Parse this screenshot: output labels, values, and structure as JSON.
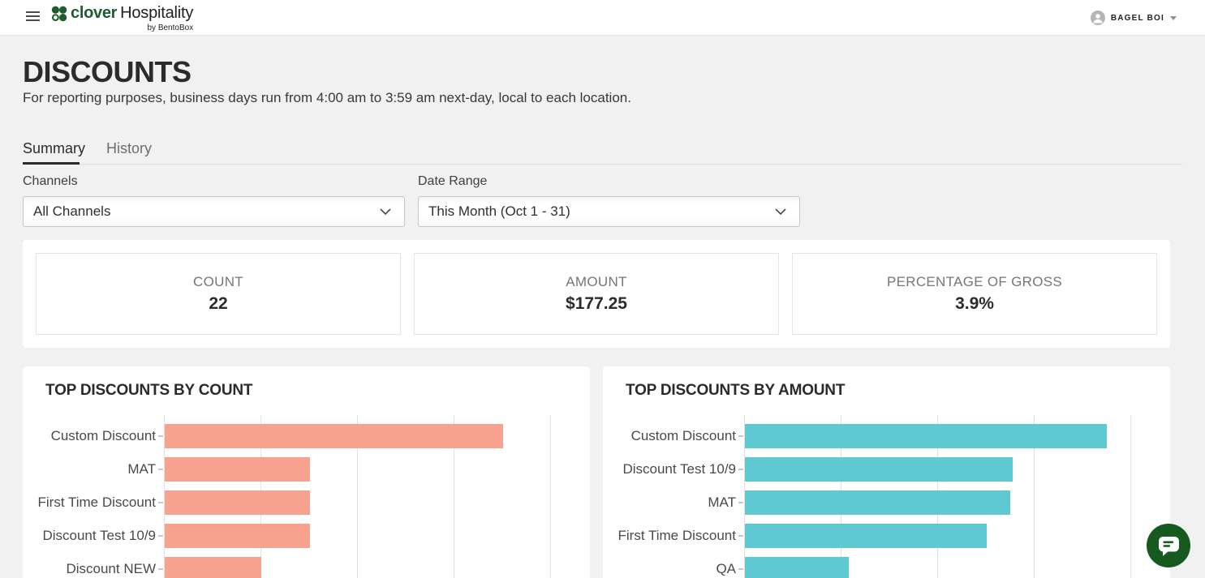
{
  "header": {
    "logo": {
      "brand": "clover",
      "suffix": "Hospitality",
      "byline": "by BentoBox"
    },
    "user": {
      "name": "BAGEL BOI"
    }
  },
  "page": {
    "title": "DISCOUNTS",
    "subtitle": "For reporting purposes, business days run from 4:00 am to 3:59 am next-day, local to each location."
  },
  "tabs": [
    {
      "label": "Summary",
      "active": true
    },
    {
      "label": "History",
      "active": false
    }
  ],
  "filters": {
    "channels": {
      "label": "Channels",
      "value": "All Channels"
    },
    "date_range": {
      "label": "Date Range",
      "value": "This Month (Oct 1 - 31)"
    }
  },
  "stats": [
    {
      "label": "COUNT",
      "value": "22"
    },
    {
      "label": "AMOUNT",
      "value": "$177.25"
    },
    {
      "label": "PERCENTAGE OF GROSS",
      "value": "3.9%"
    }
  ],
  "chart_data": [
    {
      "type": "bar",
      "orientation": "horizontal",
      "title": "TOP DISCOUNTS BY COUNT",
      "categories": [
        "Custom Discount",
        "MAT",
        "First Time Discount",
        "Discount Test 10/9",
        "Discount NEW"
      ],
      "values": [
        7,
        3,
        3,
        3,
        2
      ],
      "xlim": [
        0,
        8
      ],
      "gridline_step": 2,
      "grid": true,
      "bar_color": "#f6a28f",
      "axis_labels_visible": false
    },
    {
      "type": "bar",
      "orientation": "horizontal",
      "title": "TOP DISCOUNTS BY AMOUNT",
      "categories": [
        "Custom Discount",
        "Discount Test 10/9",
        "MAT",
        "First Time Discount",
        "QA"
      ],
      "values": [
        37.5,
        27.75,
        27.5,
        25,
        10.75
      ],
      "xlim": [
        0,
        40
      ],
      "gridline_step": 10,
      "grid": true,
      "bar_color": "#5fc9d1",
      "axis_labels_visible": false
    }
  ],
  "icons": {
    "menu": "hamburger",
    "user": "person-in-circle",
    "caret": "chevron-down",
    "select_chevron": "chevron-down",
    "chat": "speech-bubble"
  },
  "colors": {
    "brand_green": "#1e5b2e",
    "count_bar_salmon": "#f6a28f",
    "amount_bar_teal": "#5fc9d1",
    "chat_green": "#175a20",
    "page_background": "#f1f1f2"
  }
}
